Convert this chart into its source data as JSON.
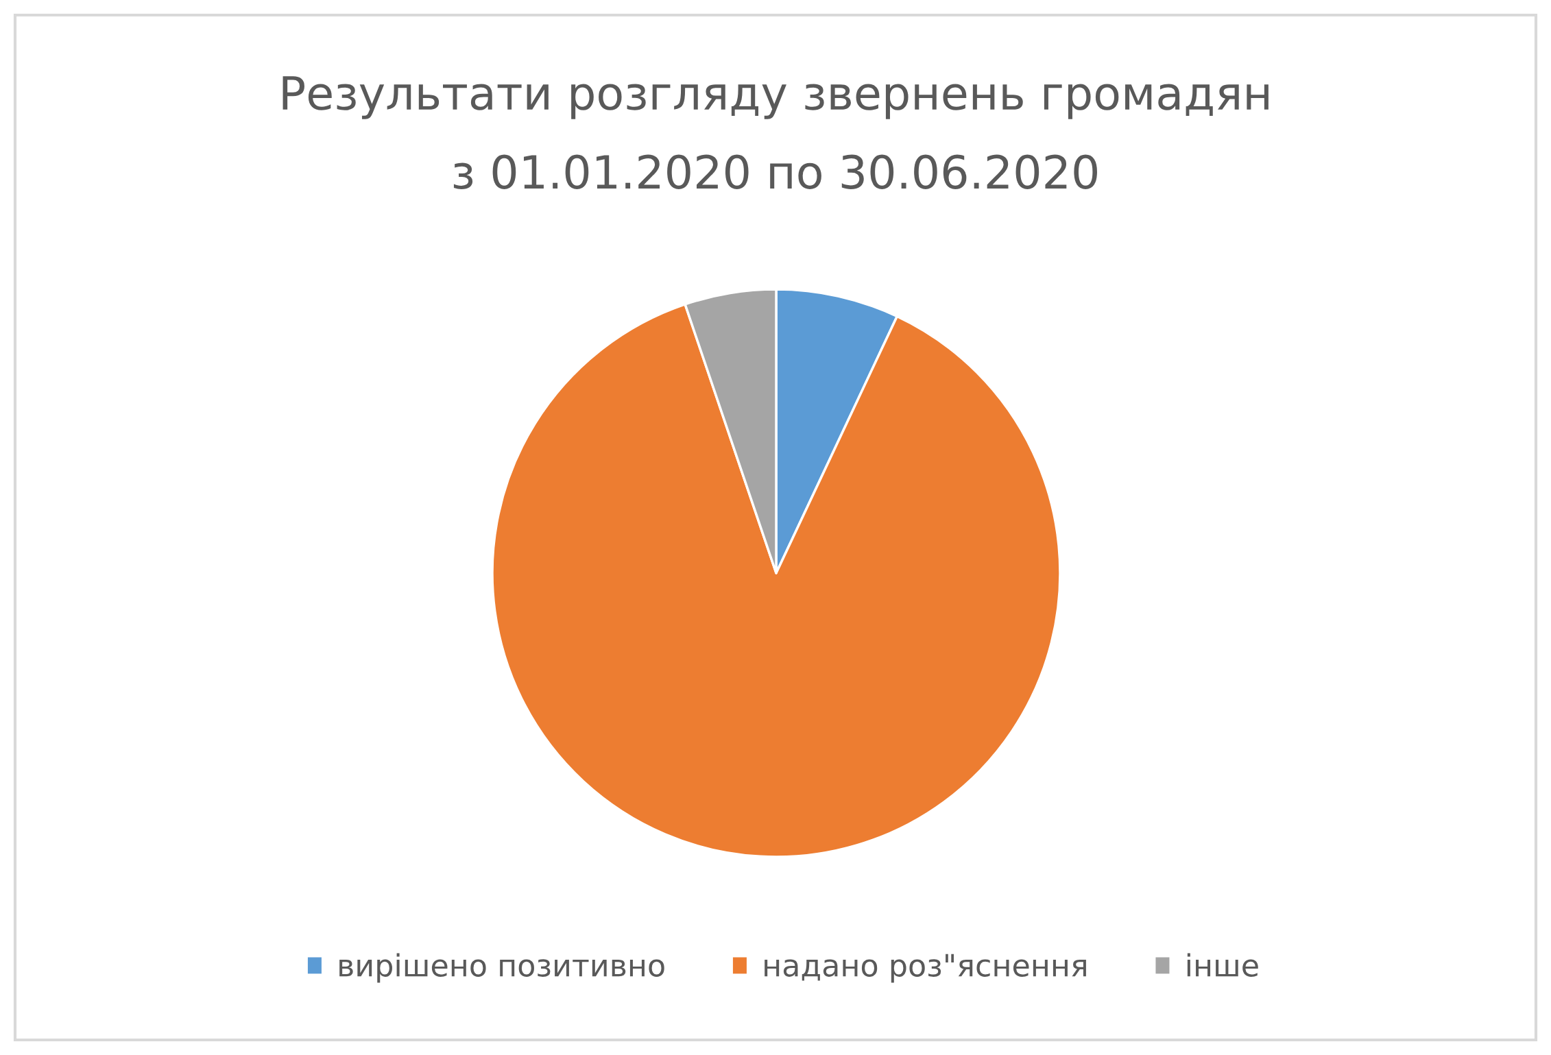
{
  "chart_data": {
    "type": "pie",
    "title": "Результати розгляду звернень громадян\nз 01.01.2020 по 30.06.2020",
    "categories": [
      "вирішено позитивно",
      "надано роз\"яснення",
      "інше"
    ],
    "values": [
      7.0,
      87.8,
      5.2
    ],
    "colors": [
      "#5b9bd5",
      "#ed7d31",
      "#a5a5a5"
    ],
    "legend": "bottom"
  }
}
